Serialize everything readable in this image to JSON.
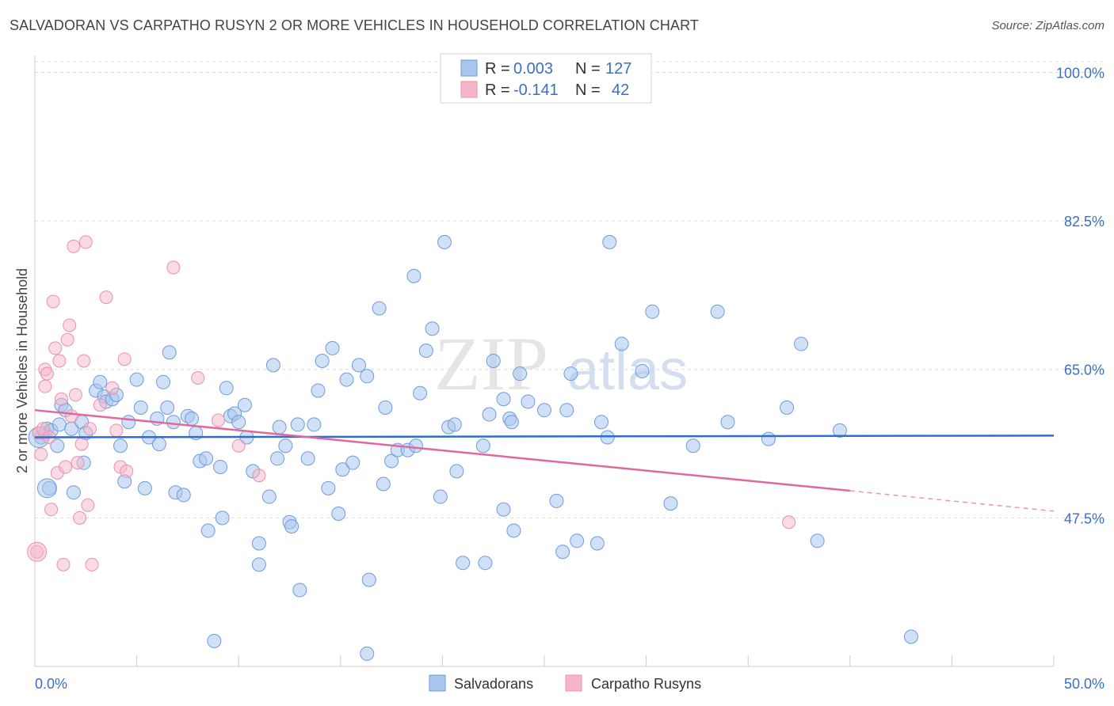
{
  "title": "SALVADORAN VS CARPATHO RUSYN 2 OR MORE VEHICLES IN HOUSEHOLD CORRELATION CHART",
  "source": "Source: ZipAtlas.com",
  "watermark": {
    "zip": "ZIP",
    "atlas": "atlas"
  },
  "colors": {
    "blue_fill": "#a9c6ef",
    "blue_stroke": "#6f9bdc",
    "blue_line": "#2f6ccf",
    "pink_fill": "#f6b6c9",
    "pink_stroke": "#ea90ab",
    "pink_line": "#e0699a",
    "grid": "#dcdcdc",
    "axis_text": "#3b6fc4"
  },
  "legend": {
    "rows": [
      {
        "r_label": "R =",
        "r_value": "0.003",
        "n_label": "N =",
        "n_value": "127"
      },
      {
        "r_label": "R =",
        "r_value": "-0.141",
        "n_label": "N =",
        "n_value": "42"
      }
    ]
  },
  "bottom_legend": [
    "Salvadorans",
    "Carpatho Rusyns"
  ],
  "chart_data": {
    "type": "scatter",
    "title": "SALVADORAN VS CARPATHO RUSYN 2 OR MORE VEHICLES IN HOUSEHOLD CORRELATION CHART",
    "xlabel": "",
    "ylabel": "2 or more Vehicles in Household",
    "xlim": [
      0,
      50
    ],
    "ylim": [
      30,
      102
    ],
    "x_tick_labels": [
      "0.0%",
      "50.0%"
    ],
    "y_ticks": [
      47.5,
      65.0,
      82.5,
      100.0
    ],
    "y_tick_labels": [
      "47.5%",
      "65.0%",
      "82.5%",
      "100.0%"
    ],
    "series": [
      {
        "name": "Salvadorans",
        "color": "#a9c6ef",
        "trend": {
          "x0": 0,
          "y0": 57.0,
          "x1": 50,
          "y1": 57.2
        },
        "points": [
          [
            0.3,
            57
          ],
          [
            0.5,
            57.5
          ],
          [
            0.6,
            58
          ],
          [
            0.7,
            51
          ],
          [
            0.8,
            57.8
          ],
          [
            1.1,
            56
          ],
          [
            1.2,
            58.5
          ],
          [
            1.3,
            60.8
          ],
          [
            1.5,
            60.2
          ],
          [
            1.8,
            58
          ],
          [
            1.9,
            50.5
          ],
          [
            2.3,
            58.8
          ],
          [
            2.4,
            54
          ],
          [
            2.5,
            57.5
          ],
          [
            3.0,
            62.5
          ],
          [
            3.2,
            63.5
          ],
          [
            3.4,
            61.8
          ],
          [
            3.5,
            61.2
          ],
          [
            3.8,
            61.5
          ],
          [
            4.0,
            62.0
          ],
          [
            4.2,
            56
          ],
          [
            4.4,
            51.8
          ],
          [
            4.6,
            58.8
          ],
          [
            5.0,
            63.8
          ],
          [
            5.2,
            60.5
          ],
          [
            5.4,
            51
          ],
          [
            5.6,
            57
          ],
          [
            6.0,
            59.2
          ],
          [
            6.1,
            56.2
          ],
          [
            6.3,
            63.5
          ],
          [
            6.5,
            60.5
          ],
          [
            6.6,
            67
          ],
          [
            6.8,
            58.8
          ],
          [
            6.9,
            50.5
          ],
          [
            7.3,
            50.2
          ],
          [
            7.5,
            59.5
          ],
          [
            7.7,
            59.2
          ],
          [
            7.9,
            57.5
          ],
          [
            8.1,
            54.2
          ],
          [
            8.4,
            54.5
          ],
          [
            8.5,
            46
          ],
          [
            8.8,
            33
          ],
          [
            9.1,
            53.5
          ],
          [
            9.2,
            47.5
          ],
          [
            9.4,
            62.8
          ],
          [
            9.6,
            59.5
          ],
          [
            9.8,
            59.8
          ],
          [
            10.0,
            58.8
          ],
          [
            10.3,
            60.8
          ],
          [
            10.4,
            57
          ],
          [
            10.7,
            53
          ],
          [
            11.0,
            44.5
          ],
          [
            11.0,
            42
          ],
          [
            11.5,
            50
          ],
          [
            11.7,
            65.5
          ],
          [
            11.9,
            54.5
          ],
          [
            12.0,
            58.2
          ],
          [
            12.3,
            56
          ],
          [
            12.5,
            47
          ],
          [
            12.6,
            46.5
          ],
          [
            12.9,
            58.5
          ],
          [
            13.0,
            39
          ],
          [
            13.4,
            54.5
          ],
          [
            13.7,
            58.5
          ],
          [
            13.9,
            62.5
          ],
          [
            14.1,
            66
          ],
          [
            14.4,
            51
          ],
          [
            14.6,
            67.5
          ],
          [
            14.9,
            48
          ],
          [
            15.1,
            53.2
          ],
          [
            15.3,
            63.8
          ],
          [
            15.6,
            54
          ],
          [
            15.9,
            65.5
          ],
          [
            16.3,
            64.2
          ],
          [
            16.4,
            40.2
          ],
          [
            16.3,
            31.5
          ],
          [
            16.9,
            72.2
          ],
          [
            17.1,
            51.5
          ],
          [
            17.2,
            60.5
          ],
          [
            17.5,
            54.2
          ],
          [
            17.8,
            55.5
          ],
          [
            18.3,
            55.5
          ],
          [
            18.7,
            56
          ],
          [
            18.6,
            76
          ],
          [
            18.9,
            62.2
          ],
          [
            19.2,
            67.2
          ],
          [
            19.5,
            69.8
          ],
          [
            19.9,
            50
          ],
          [
            20.1,
            80
          ],
          [
            20.3,
            58.2
          ],
          [
            20.6,
            58.5
          ],
          [
            20.7,
            53
          ],
          [
            21.0,
            42.2
          ],
          [
            22.0,
            56
          ],
          [
            22.1,
            42.2
          ],
          [
            22.3,
            59.7
          ],
          [
            22.5,
            66.0
          ],
          [
            23.0,
            48.5
          ],
          [
            23.0,
            61.5
          ],
          [
            23.3,
            59.2
          ],
          [
            23.4,
            58.8
          ],
          [
            23.5,
            46
          ],
          [
            23.8,
            64.5
          ],
          [
            24.2,
            61.2
          ],
          [
            25.0,
            60.2
          ],
          [
            25.6,
            49.5
          ],
          [
            25.9,
            43.5
          ],
          [
            26.1,
            60.2
          ],
          [
            26.3,
            64.5
          ],
          [
            26.6,
            44.8
          ],
          [
            27.6,
            44.5
          ],
          [
            27.8,
            58.8
          ],
          [
            28.1,
            57
          ],
          [
            28.2,
            80
          ],
          [
            28.8,
            68
          ],
          [
            29.8,
            64.8
          ],
          [
            30.3,
            71.8
          ],
          [
            31.2,
            49.2
          ],
          [
            32.3,
            56
          ],
          [
            33.5,
            71.8
          ],
          [
            34.0,
            58.8
          ],
          [
            36.0,
            56.8
          ],
          [
            36.9,
            60.5
          ],
          [
            37.6,
            68
          ],
          [
            38.4,
            44.8
          ],
          [
            39.5,
            57.8
          ],
          [
            43.0,
            33.5
          ]
        ]
      },
      {
        "name": "Carpatho Rusyns",
        "color": "#f6b6c9",
        "trend": {
          "x0": 0,
          "y0": 60.2,
          "x1": 40,
          "y1": 50.7,
          "dash_to_x": 50,
          "dash_to_y": 48.3
        },
        "points": [
          [
            0.1,
            43.5
          ],
          [
            0.2,
            57.5
          ],
          [
            0.3,
            55
          ],
          [
            0.4,
            58
          ],
          [
            0.5,
            63
          ],
          [
            0.5,
            65
          ],
          [
            0.6,
            64.5
          ],
          [
            0.7,
            57
          ],
          [
            0.8,
            48.5
          ],
          [
            0.9,
            73
          ],
          [
            1.0,
            67.5
          ],
          [
            1.1,
            52.8
          ],
          [
            1.2,
            66
          ],
          [
            1.3,
            61.5
          ],
          [
            1.4,
            42
          ],
          [
            1.5,
            53.5
          ],
          [
            1.6,
            68.5
          ],
          [
            1.7,
            70.2
          ],
          [
            1.8,
            59.5
          ],
          [
            1.9,
            79.5
          ],
          [
            2.0,
            62
          ],
          [
            2.1,
            54
          ],
          [
            2.2,
            47.5
          ],
          [
            2.3,
            56.2
          ],
          [
            2.4,
            66
          ],
          [
            2.5,
            80
          ],
          [
            2.6,
            49
          ],
          [
            2.7,
            58
          ],
          [
            2.8,
            42
          ],
          [
            3.2,
            60.8
          ],
          [
            3.5,
            73.5
          ],
          [
            3.8,
            62.8
          ],
          [
            4.0,
            57.8
          ],
          [
            4.2,
            53.5
          ],
          [
            4.4,
            66.2
          ],
          [
            4.5,
            53
          ],
          [
            6.8,
            77
          ],
          [
            8.0,
            64
          ],
          [
            9.0,
            59
          ],
          [
            10.0,
            56
          ],
          [
            11.0,
            52.5
          ],
          [
            37.0,
            47
          ]
        ]
      }
    ]
  }
}
